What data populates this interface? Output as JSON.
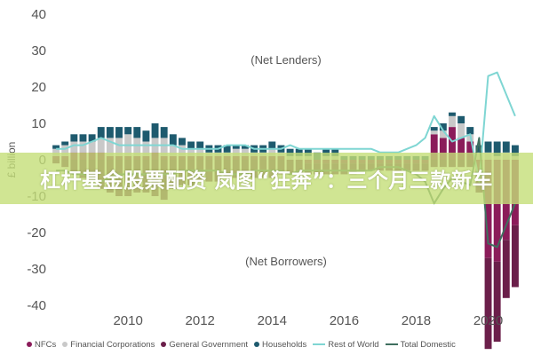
{
  "banner": {
    "text": "杠杆基金股票配资 岚图“狂奔”：三个月三款新车"
  },
  "colors": {
    "nfcs": "#8b1c5a",
    "financial": "#c9c9c9",
    "government": "#6b1f4a",
    "households": "#1e5a6e",
    "rest_of_world": "#7fd6d3",
    "total_domestic": "#3f6f5f",
    "banner": "#c4de78"
  },
  "chart_data": {
    "type": "bar",
    "ylabel": "£ billion",
    "ylim": [
      -40,
      40
    ],
    "y_ticks": [
      40,
      30,
      20,
      10,
      0,
      -10,
      -20,
      -30,
      -40
    ],
    "x_ticks": [
      "2010",
      "2012",
      "2014",
      "2016",
      "2018",
      "2020"
    ],
    "grid": false,
    "legend_position": "bottom",
    "annotations": [
      "(Net Lenders)",
      "(Net Borrowers)"
    ],
    "x": [
      "2008Q1",
      "2008Q2",
      "2008Q3",
      "2008Q4",
      "2009Q1",
      "2009Q2",
      "2009Q3",
      "2009Q4",
      "2010Q1",
      "2010Q2",
      "2010Q3",
      "2010Q4",
      "2011Q1",
      "2011Q2",
      "2011Q3",
      "2011Q4",
      "2012Q1",
      "2012Q2",
      "2012Q3",
      "2012Q4",
      "2013Q1",
      "2013Q2",
      "2013Q3",
      "2013Q4",
      "2014Q1",
      "2014Q2",
      "2014Q3",
      "2014Q4",
      "2015Q1",
      "2015Q2",
      "2015Q3",
      "2015Q4",
      "2016Q1",
      "2016Q2",
      "2016Q3",
      "2016Q4",
      "2017Q1",
      "2017Q2",
      "2017Q3",
      "2017Q4",
      "2018Q1",
      "2018Q2",
      "2018Q3",
      "2018Q4",
      "2019Q1",
      "2019Q2",
      "2019Q3",
      "2019Q4",
      "2020Q1",
      "2020Q2",
      "2020Q3",
      "2020Q4"
    ],
    "series": [
      {
        "name": "NFCs",
        "type": "bar",
        "values": [
          1,
          1,
          2,
          2,
          2,
          2,
          1,
          1,
          1,
          1,
          1,
          2,
          1,
          1,
          1,
          1,
          1,
          1,
          1,
          1,
          1,
          1,
          1,
          1,
          1,
          1,
          0,
          0,
          -1,
          -1,
          -1,
          -1,
          -1,
          -1,
          -1,
          -1,
          -1,
          -1,
          -1,
          -1,
          -1,
          -1,
          7,
          6,
          9,
          6,
          5,
          -6,
          -27,
          -28,
          -22,
          -18
        ]
      },
      {
        "name": "Financial Corporations",
        "type": "bar",
        "values": [
          2,
          3,
          3,
          3,
          3,
          4,
          5,
          5,
          6,
          5,
          4,
          4,
          5,
          3,
          3,
          2,
          2,
          1,
          1,
          1,
          2,
          2,
          1,
          1,
          2,
          1,
          1,
          1,
          1,
          0,
          1,
          1,
          0,
          0,
          0,
          0,
          0,
          0,
          0,
          0,
          0,
          0,
          1,
          2,
          3,
          4,
          2,
          2,
          2,
          1,
          2,
          1
        ]
      },
      {
        "name": "General Government",
        "type": "bar",
        "values": [
          -1,
          -2,
          -4,
          -5,
          -6,
          -8,
          -9,
          -10,
          -10,
          -9,
          -9,
          -10,
          -11,
          -8,
          -7,
          -7,
          -6,
          -6,
          -6,
          -5,
          -5,
          -5,
          -5,
          -5,
          -5,
          -4,
          -4,
          -4,
          -3,
          -3,
          -3,
          -3,
          -3,
          -3,
          -2,
          -2,
          -2,
          -2,
          -2,
          -2,
          -2,
          -2,
          -2,
          -2,
          -2,
          -2,
          -2,
          -3,
          -25,
          -22,
          -16,
          -17
        ]
      },
      {
        "name": "Households",
        "type": "bar",
        "values": [
          1,
          1,
          2,
          2,
          2,
          3,
          3,
          3,
          2,
          3,
          3,
          4,
          3,
          3,
          2,
          2,
          2,
          2,
          2,
          2,
          1,
          1,
          2,
          2,
          2,
          2,
          2,
          2,
          2,
          2,
          2,
          2,
          1,
          1,
          1,
          1,
          1,
          1,
          1,
          1,
          1,
          1,
          1,
          2,
          1,
          2,
          2,
          2,
          3,
          4,
          3,
          3
        ]
      },
      {
        "name": "Rest of World",
        "type": "line",
        "values": [
          3,
          3,
          4,
          4,
          5,
          6,
          5,
          4,
          4,
          4,
          4,
          4,
          4,
          4,
          3,
          3,
          3,
          3,
          3,
          4,
          4,
          4,
          3,
          3,
          3,
          3,
          4,
          3,
          3,
          3,
          3,
          3,
          3,
          3,
          3,
          3,
          2,
          2,
          2,
          3,
          4,
          6,
          12,
          8,
          5,
          6,
          7,
          -6,
          23,
          24,
          18,
          12
        ]
      },
      {
        "name": "Total Domestic",
        "type": "line",
        "values": [
          -3,
          -3,
          -4,
          -4,
          -5,
          -6,
          -5,
          -4,
          -4,
          -4,
          -4,
          -4,
          -4,
          -4,
          -3,
          -3,
          -3,
          -3,
          -3,
          -4,
          -4,
          -4,
          -3,
          -3,
          -3,
          -3,
          -4,
          -3,
          -3,
          -3,
          -3,
          -3,
          -3,
          -3,
          -3,
          -3,
          -2,
          -2,
          -2,
          -3,
          -4,
          -6,
          -12,
          -8,
          -5,
          -6,
          -7,
          6,
          -23,
          -24,
          -18,
          -12
        ]
      }
    ]
  },
  "legend": [
    {
      "label": "NFCs",
      "kind": "dot",
      "color_key": "nfcs"
    },
    {
      "label": "Financial Corporations",
      "kind": "dot",
      "color_key": "financial"
    },
    {
      "label": "General Government",
      "kind": "dot",
      "color_key": "government"
    },
    {
      "label": "Households",
      "kind": "dot",
      "color_key": "households"
    },
    {
      "label": "Rest of World",
      "kind": "line",
      "color_key": "rest_of_world"
    },
    {
      "label": "Total Domestic",
      "kind": "line",
      "color_key": "total_domestic"
    }
  ]
}
